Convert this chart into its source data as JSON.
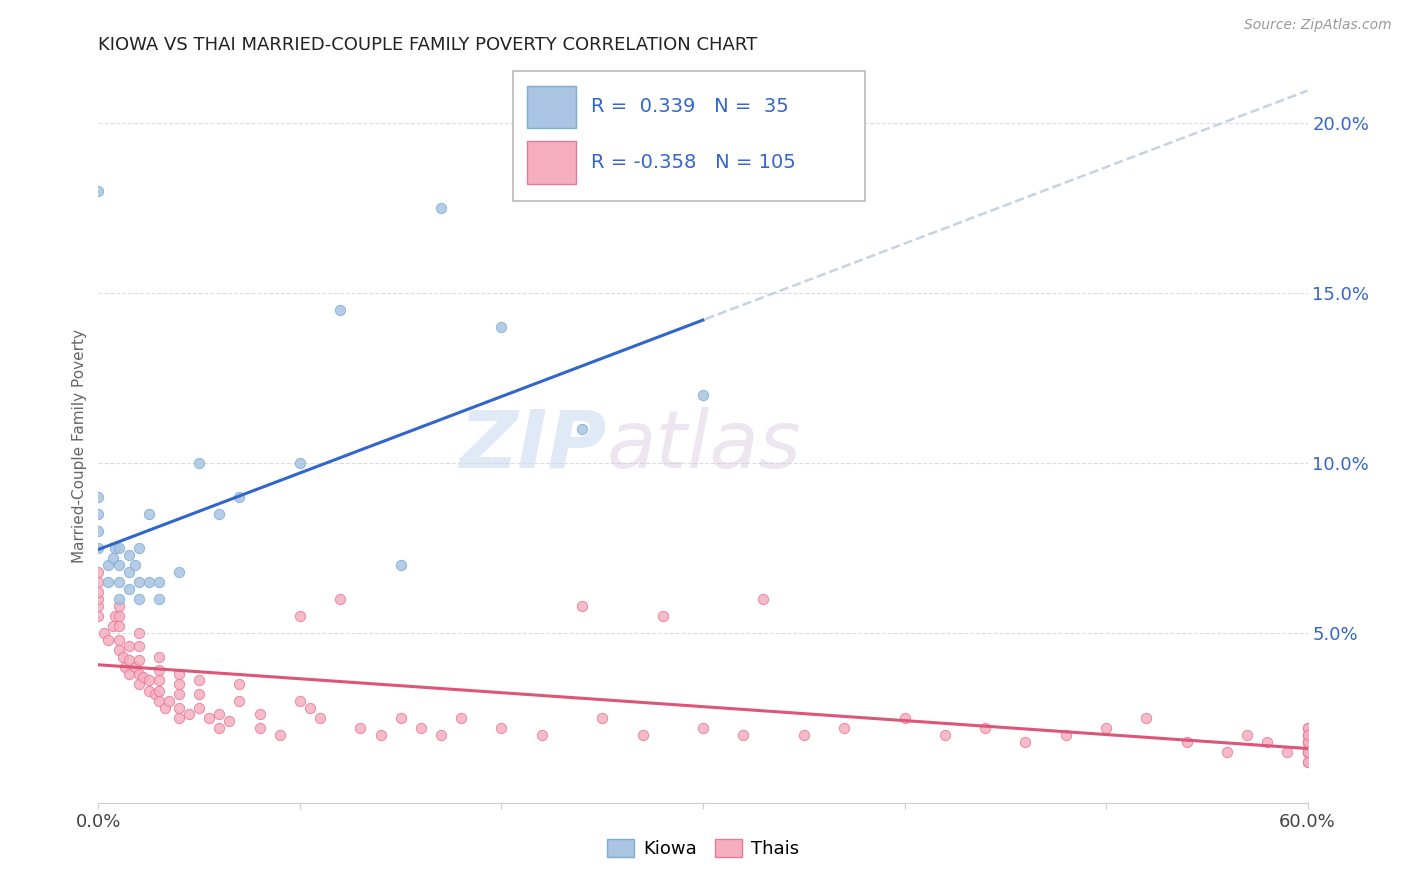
{
  "title": "KIOWA VS THAI MARRIED-COUPLE FAMILY POVERTY CORRELATION CHART",
  "source": "Source: ZipAtlas.com",
  "ylabel": "Married-Couple Family Poverty",
  "xlim": [
    0.0,
    0.6
  ],
  "ylim": [
    0.0,
    0.21
  ],
  "xticks": [
    0.0,
    0.1,
    0.2,
    0.3,
    0.4,
    0.5,
    0.6
  ],
  "yticks_right": [
    0.05,
    0.1,
    0.15,
    0.2
  ],
  "ytick_labels_right": [
    "5.0%",
    "10.0%",
    "15.0%",
    "20.0%"
  ],
  "kiowa_color": "#aac4e2",
  "kiowa_edge": "#7aafd4",
  "thai_color": "#f5afc0",
  "thai_edge": "#e87898",
  "kiowa_R": 0.339,
  "kiowa_N": 35,
  "thai_R": -0.358,
  "thai_N": 105,
  "legend_label_kiowa": "Kiowa",
  "legend_label_thai": "Thais",
  "trendline_kiowa_color": "#3366cc",
  "trendline_thai_color": "#dd5577",
  "trendline_dashed_color": "#bbccdd",
  "watermark_zip": "ZIP",
  "watermark_atlas": "atlas",
  "kiowa_x": [
    0.0,
    0.0,
    0.0,
    0.0,
    0.0,
    0.005,
    0.005,
    0.007,
    0.008,
    0.01,
    0.01,
    0.01,
    0.01,
    0.015,
    0.015,
    0.015,
    0.018,
    0.02,
    0.02,
    0.02,
    0.025,
    0.025,
    0.03,
    0.03,
    0.04,
    0.05,
    0.06,
    0.07,
    0.1,
    0.12,
    0.15,
    0.17,
    0.2,
    0.24,
    0.3
  ],
  "kiowa_y": [
    0.075,
    0.08,
    0.085,
    0.09,
    0.18,
    0.065,
    0.07,
    0.072,
    0.075,
    0.06,
    0.065,
    0.07,
    0.075,
    0.063,
    0.068,
    0.073,
    0.07,
    0.06,
    0.065,
    0.075,
    0.065,
    0.085,
    0.06,
    0.065,
    0.068,
    0.1,
    0.085,
    0.09,
    0.1,
    0.145,
    0.07,
    0.175,
    0.14,
    0.11,
    0.12
  ],
  "thai_x": [
    0.0,
    0.0,
    0.0,
    0.0,
    0.0,
    0.0,
    0.003,
    0.005,
    0.007,
    0.008,
    0.01,
    0.01,
    0.01,
    0.01,
    0.01,
    0.012,
    0.013,
    0.015,
    0.015,
    0.015,
    0.018,
    0.02,
    0.02,
    0.02,
    0.02,
    0.02,
    0.022,
    0.025,
    0.025,
    0.028,
    0.03,
    0.03,
    0.03,
    0.03,
    0.03,
    0.033,
    0.035,
    0.04,
    0.04,
    0.04,
    0.04,
    0.04,
    0.045,
    0.05,
    0.05,
    0.05,
    0.055,
    0.06,
    0.06,
    0.065,
    0.07,
    0.07,
    0.08,
    0.08,
    0.09,
    0.1,
    0.1,
    0.105,
    0.11,
    0.12,
    0.13,
    0.14,
    0.15,
    0.16,
    0.17,
    0.18,
    0.2,
    0.22,
    0.24,
    0.25,
    0.27,
    0.28,
    0.3,
    0.32,
    0.33,
    0.35,
    0.37,
    0.4,
    0.42,
    0.44,
    0.46,
    0.48,
    0.5,
    0.52,
    0.54,
    0.56,
    0.57,
    0.58,
    0.59,
    0.6,
    0.6,
    0.6,
    0.6,
    0.6,
    0.6,
    0.6,
    0.6,
    0.6,
    0.6,
    0.6,
    0.6,
    0.6,
    0.6,
    0.6,
    0.6
  ],
  "thai_y": [
    0.055,
    0.058,
    0.06,
    0.062,
    0.065,
    0.068,
    0.05,
    0.048,
    0.052,
    0.055,
    0.045,
    0.048,
    0.052,
    0.055,
    0.058,
    0.043,
    0.04,
    0.038,
    0.042,
    0.046,
    0.04,
    0.035,
    0.038,
    0.042,
    0.046,
    0.05,
    0.037,
    0.033,
    0.036,
    0.032,
    0.03,
    0.033,
    0.036,
    0.039,
    0.043,
    0.028,
    0.03,
    0.025,
    0.028,
    0.032,
    0.035,
    0.038,
    0.026,
    0.028,
    0.032,
    0.036,
    0.025,
    0.022,
    0.026,
    0.024,
    0.03,
    0.035,
    0.022,
    0.026,
    0.02,
    0.03,
    0.055,
    0.028,
    0.025,
    0.06,
    0.022,
    0.02,
    0.025,
    0.022,
    0.02,
    0.025,
    0.022,
    0.02,
    0.058,
    0.025,
    0.02,
    0.055,
    0.022,
    0.02,
    0.06,
    0.02,
    0.022,
    0.025,
    0.02,
    0.022,
    0.018,
    0.02,
    0.022,
    0.025,
    0.018,
    0.015,
    0.02,
    0.018,
    0.015,
    0.022,
    0.018,
    0.015,
    0.02,
    0.018,
    0.022,
    0.015,
    0.018,
    0.02,
    0.015,
    0.018,
    0.015,
    0.012,
    0.02,
    0.015,
    0.012
  ]
}
